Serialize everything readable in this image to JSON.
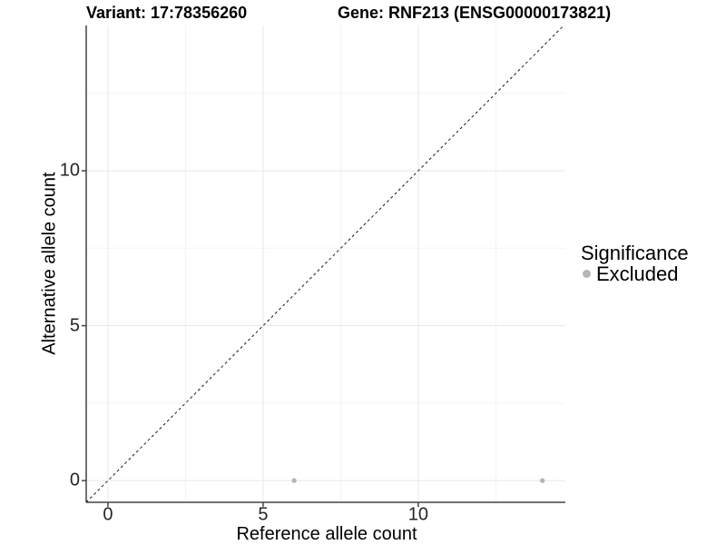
{
  "chart_data": {
    "type": "scatter",
    "title_left": "Variant: 17:78356260",
    "title_right": "Gene: RNF213 (ENSG00000173821)",
    "xlabel": "Reference allele count",
    "ylabel": "Alternative allele count",
    "x_ticks": [
      0,
      5,
      10
    ],
    "y_ticks": [
      0,
      5,
      10
    ],
    "x_minor_ticks": [
      2.5,
      7.5,
      12.5
    ],
    "y_minor_ticks": [
      2.5,
      7.5,
      12.5
    ],
    "xlim": [
      -0.7,
      14.74
    ],
    "ylim": [
      -0.7,
      14.69
    ],
    "grid": {
      "major_color": "#e8e8e8",
      "minor_color": "#f3f3f3",
      "on": true
    },
    "axis_color": "#444444",
    "series": [
      {
        "name": "Excluded",
        "color": "#b5b5b5",
        "points": [
          {
            "x": 6,
            "y": 0
          },
          {
            "x": 14,
            "y": 0
          }
        ]
      }
    ],
    "reference_line": {
      "slope": 1,
      "intercept": 0,
      "style": "dashed",
      "color": "#1a1a1a"
    },
    "legend": {
      "position": "right",
      "title": "Significance",
      "items": [
        {
          "label": "Excluded",
          "color": "#b5b5b5"
        }
      ]
    }
  }
}
